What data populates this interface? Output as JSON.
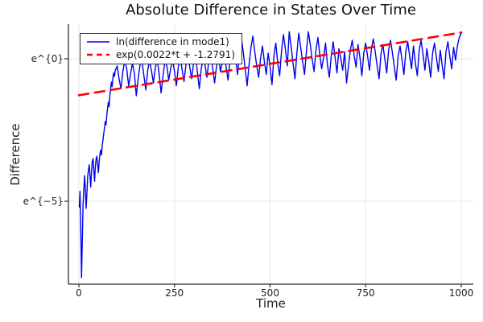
{
  "figure": {
    "title": "Absolute Difference in States Over Time",
    "background": "#ffffff"
  },
  "chart_data": {
    "type": "line",
    "title": "Absolute Difference in States Over Time",
    "xlabel": "Time",
    "ylabel": "Difference",
    "y_scale": "log (labels shown as unrendered latex e^{n}, values below are ln(difference))",
    "grid": true,
    "grid_color": "#e6e6e6",
    "axis_color": "#2f2f2f",
    "legend_position": "top-left",
    "xlim": [
      -27.4,
      1031.6
    ],
    "ylim_ln": [
      -7.91,
      1.215
    ],
    "x_ticks": [
      {
        "value": 0,
        "label": "0"
      },
      {
        "value": 250,
        "label": "250"
      },
      {
        "value": 500,
        "label": "500"
      },
      {
        "value": 750,
        "label": "750"
      },
      {
        "value": 1000,
        "label": "1000"
      }
    ],
    "y_ticks": [
      {
        "value": 0,
        "label": "e^{0}"
      },
      {
        "value": -5,
        "label": "e^{−5}"
      }
    ],
    "series": [
      {
        "name": "ln(difference in mode1)",
        "color": "#0000ee",
        "style": "solid",
        "width": 1.4,
        "points": [
          [
            1,
            -5.2
          ],
          [
            3,
            -4.65
          ],
          [
            5,
            -6.1
          ],
          [
            7,
            -7.68
          ],
          [
            9,
            -6.3
          ],
          [
            11,
            -5.1
          ],
          [
            13,
            -4.55
          ],
          [
            15,
            -4.1
          ],
          [
            17,
            -4.6
          ],
          [
            19,
            -5.25
          ],
          [
            21,
            -4.7
          ],
          [
            23,
            -4.15
          ],
          [
            25,
            -3.9
          ],
          [
            27,
            -3.72
          ],
          [
            29,
            -4.1
          ],
          [
            31,
            -4.5
          ],
          [
            33,
            -3.95
          ],
          [
            35,
            -3.62
          ],
          [
            37,
            -3.5
          ],
          [
            39,
            -3.9
          ],
          [
            41,
            -4.3
          ],
          [
            43,
            -3.8
          ],
          [
            45,
            -3.52
          ],
          [
            47,
            -3.42
          ],
          [
            49,
            -3.7
          ],
          [
            51,
            -4.0
          ],
          [
            53,
            -3.62
          ],
          [
            55,
            -3.35
          ],
          [
            57,
            -3.2
          ],
          [
            59,
            -3.38
          ],
          [
            61,
            -3.05
          ],
          [
            63,
            -2.85
          ],
          [
            65,
            -2.62
          ],
          [
            67,
            -2.42
          ],
          [
            69,
            -2.2
          ],
          [
            71,
            -2.32
          ],
          [
            73,
            -1.98
          ],
          [
            75,
            -1.75
          ],
          [
            77,
            -1.52
          ],
          [
            79,
            -1.68
          ],
          [
            81,
            -1.3
          ],
          [
            83,
            -1.05
          ],
          [
            85,
            -0.82
          ],
          [
            87,
            -0.98
          ],
          [
            89,
            -0.65
          ],
          [
            91,
            -0.5
          ],
          [
            93,
            -0.62
          ],
          [
            95,
            -0.42
          ],
          [
            100,
            -0.25
          ],
          [
            105,
            -0.7
          ],
          [
            110,
            -1.05
          ],
          [
            115,
            -0.45
          ],
          [
            120,
            -0.05
          ],
          [
            125,
            -0.35
          ],
          [
            130,
            -0.95
          ],
          [
            135,
            -0.55
          ],
          [
            140,
            -0.15
          ],
          [
            145,
            -0.5
          ],
          [
            150,
            -1.3
          ],
          [
            155,
            -0.7
          ],
          [
            160,
            -0.2
          ],
          [
            165,
            -0.1
          ],
          [
            170,
            -0.6
          ],
          [
            175,
            -1.1
          ],
          [
            180,
            -0.4
          ],
          [
            185,
            -0.05
          ],
          [
            190,
            -0.45
          ],
          [
            195,
            -0.85
          ],
          [
            200,
            -0.3
          ],
          [
            205,
            -0.05
          ],
          [
            210,
            -0.55
          ],
          [
            215,
            -1.2
          ],
          [
            220,
            -0.6
          ],
          [
            225,
            -0.1
          ],
          [
            230,
            -0.25
          ],
          [
            235,
            -0.75
          ],
          [
            240,
            -0.35
          ],
          [
            245,
            -0.05
          ],
          [
            250,
            -0.45
          ],
          [
            255,
            -0.95
          ],
          [
            260,
            -0.3
          ],
          [
            265,
            0.05
          ],
          [
            270,
            -0.4
          ],
          [
            275,
            -0.8
          ],
          [
            280,
            -0.2
          ],
          [
            285,
            0.1
          ],
          [
            290,
            -0.3
          ],
          [
            295,
            -0.7
          ],
          [
            300,
            -0.15
          ],
          [
            305,
            0.15
          ],
          [
            310,
            -0.5
          ],
          [
            315,
            -1.05
          ],
          [
            320,
            -0.35
          ],
          [
            325,
            0.05
          ],
          [
            330,
            -0.25
          ],
          [
            335,
            -0.65
          ],
          [
            340,
            -0.05
          ],
          [
            345,
            0.2
          ],
          [
            350,
            -0.35
          ],
          [
            355,
            -0.85
          ],
          [
            360,
            -0.25
          ],
          [
            365,
            0.1
          ],
          [
            370,
            -0.45
          ],
          [
            375,
            -0.15
          ],
          [
            380,
            0.25
          ],
          [
            385,
            -0.3
          ],
          [
            390,
            -0.75
          ],
          [
            395,
            -0.1
          ],
          [
            400,
            0.3
          ],
          [
            405,
            0.6
          ],
          [
            410,
            -0.05
          ],
          [
            415,
            -0.55
          ],
          [
            420,
            0.15
          ],
          [
            425,
            0.75
          ],
          [
            430,
            0.2
          ],
          [
            435,
            -0.35
          ],
          [
            440,
            -0.95
          ],
          [
            445,
            -0.2
          ],
          [
            450,
            0.4
          ],
          [
            455,
            0.8
          ],
          [
            460,
            0.25
          ],
          [
            465,
            -0.25
          ],
          [
            470,
            -0.65
          ],
          [
            475,
            0.0
          ],
          [
            480,
            0.45
          ],
          [
            485,
            -0.1
          ],
          [
            490,
            -0.55
          ],
          [
            495,
            0.2
          ],
          [
            500,
            -0.3
          ],
          [
            505,
            -0.9
          ],
          [
            510,
            0.1
          ],
          [
            515,
            0.55
          ],
          [
            520,
            -0.15
          ],
          [
            525,
            -0.6
          ],
          [
            530,
            0.3
          ],
          [
            535,
            0.85
          ],
          [
            540,
            0.35
          ],
          [
            545,
            -0.25
          ],
          [
            550,
            0.95
          ],
          [
            555,
            0.45
          ],
          [
            560,
            -0.15
          ],
          [
            565,
            -0.7
          ],
          [
            570,
            0.2
          ],
          [
            575,
            0.9
          ],
          [
            580,
            0.4
          ],
          [
            585,
            -0.1
          ],
          [
            590,
            -0.55
          ],
          [
            595,
            0.25
          ],
          [
            600,
            0.95
          ],
          [
            605,
            0.5
          ],
          [
            610,
            0.0
          ],
          [
            615,
            -0.45
          ],
          [
            620,
            0.3
          ],
          [
            625,
            0.75
          ],
          [
            630,
            0.15
          ],
          [
            635,
            -0.35
          ],
          [
            640,
            0.05
          ],
          [
            645,
            0.55
          ],
          [
            650,
            -0.2
          ],
          [
            655,
            -0.65
          ],
          [
            660,
            0.1
          ],
          [
            665,
            0.6
          ],
          [
            670,
            0.05
          ],
          [
            675,
            -0.5
          ],
          [
            680,
            0.35
          ],
          [
            685,
            0.0
          ],
          [
            690,
            -0.4
          ],
          [
            695,
            0.25
          ],
          [
            700,
            -0.85
          ],
          [
            705,
            -0.25
          ],
          [
            710,
            0.3
          ],
          [
            715,
            0.65
          ],
          [
            720,
            0.1
          ],
          [
            725,
            -0.3
          ],
          [
            730,
            0.5
          ],
          [
            735,
            0.05
          ],
          [
            740,
            -0.6
          ],
          [
            745,
            0.2
          ],
          [
            750,
            0.55
          ],
          [
            755,
            0.1
          ],
          [
            760,
            -0.4
          ],
          [
            765,
            0.35
          ],
          [
            770,
            0.7
          ],
          [
            775,
            0.25
          ],
          [
            780,
            -0.25
          ],
          [
            785,
            -0.7
          ],
          [
            790,
            0.15
          ],
          [
            795,
            0.5
          ],
          [
            800,
            0.0
          ],
          [
            805,
            -0.5
          ],
          [
            810,
            0.3
          ],
          [
            815,
            0.65
          ],
          [
            820,
            0.2
          ],
          [
            825,
            -0.3
          ],
          [
            830,
            -0.75
          ],
          [
            835,
            0.1
          ],
          [
            840,
            0.45
          ],
          [
            845,
            -0.05
          ],
          [
            850,
            -0.55
          ],
          [
            855,
            0.25
          ],
          [
            860,
            0.6
          ],
          [
            865,
            0.1
          ],
          [
            870,
            -0.35
          ],
          [
            875,
            0.45
          ],
          [
            880,
            -0.15
          ],
          [
            885,
            -0.6
          ],
          [
            890,
            0.3
          ],
          [
            895,
            0.65
          ],
          [
            900,
            0.15
          ],
          [
            905,
            -0.4
          ],
          [
            910,
            0.35
          ],
          [
            915,
            -0.1
          ],
          [
            920,
            -0.65
          ],
          [
            925,
            0.2
          ],
          [
            930,
            0.55
          ],
          [
            935,
            0.05
          ],
          [
            940,
            -0.45
          ],
          [
            945,
            0.3
          ],
          [
            950,
            -0.2
          ],
          [
            955,
            -0.7
          ],
          [
            960,
            0.25
          ],
          [
            965,
            0.6
          ],
          [
            970,
            0.1
          ],
          [
            975,
            -0.35
          ],
          [
            980,
            0.4
          ],
          [
            985,
            -0.05
          ],
          [
            990,
            0.45
          ],
          [
            995,
            0.75
          ],
          [
            1000,
            0.9
          ]
        ]
      },
      {
        "name": "exp(0.0022*t + -1.2791)",
        "color": "#ff0000",
        "style": "dashed",
        "width": 2.6,
        "dash": "12 8",
        "fit": {
          "slope": 0.0022,
          "intercept": -1.2791
        },
        "points": [
          [
            0,
            -1.2791
          ],
          [
            1000,
            0.9209
          ]
        ]
      }
    ]
  }
}
